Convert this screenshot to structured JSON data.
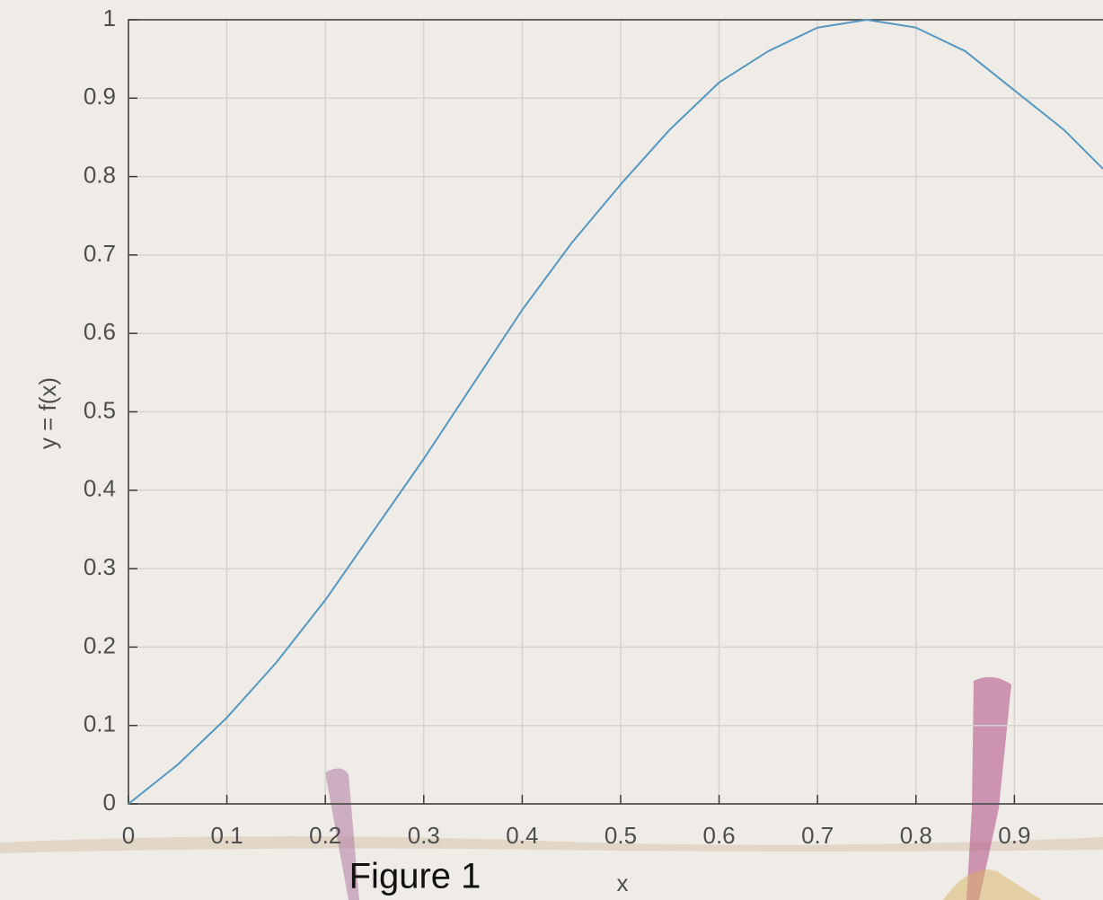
{
  "chart_data": {
    "type": "line",
    "x_label": "x",
    "y_label": "y = f(x)",
    "caption": "Figure 1",
    "x": [
      0,
      0.05,
      0.1,
      0.15,
      0.2,
      0.25,
      0.3,
      0.35,
      0.4,
      0.45,
      0.5,
      0.55,
      0.6,
      0.65,
      0.7,
      0.75,
      0.8,
      0.85,
      0.9,
      0.95,
      0.99
    ],
    "series": [
      {
        "color": "#5597c0",
        "values": [
          0,
          0.05,
          0.11,
          0.18,
          0.26,
          0.35,
          0.44,
          0.535,
          0.63,
          0.715,
          0.79,
          0.86,
          0.92,
          0.96,
          0.99,
          1.0,
          0.99,
          0.96,
          0.91,
          0.86,
          0.81
        ]
      }
    ],
    "xlim": [
      0,
      0.99
    ],
    "ylim": [
      0,
      1
    ],
    "xticks": [
      0,
      0.1,
      0.2,
      0.3,
      0.4,
      0.5,
      0.6,
      0.7,
      0.8,
      0.9
    ],
    "yticks": [
      0,
      0.1,
      0.2,
      0.3,
      0.4,
      0.5,
      0.6,
      0.7,
      0.8,
      0.9,
      1
    ],
    "grid": true
  }
}
